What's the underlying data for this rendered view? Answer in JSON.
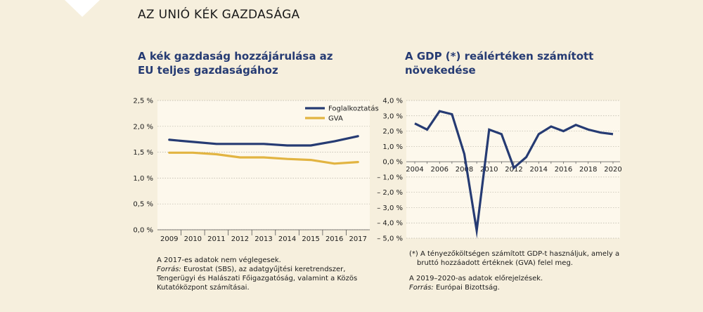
{
  "page": {
    "title": "AZ UNIÓ KÉK GAZDASÁGA"
  },
  "left": {
    "title_line1": "A kék gazdaság hozzájárulása az",
    "title_line2": "EU teljes gazdaságához",
    "notes": {
      "line1": "A 2017-es adatok nem véglegesek.",
      "source_label": "Forrás:",
      "source_text": " Eurostat (SBS), az adatgyűjtési keretrendszer,",
      "line3": "Tengerügyi és Halászati Főigazgatóság, valamint a Közös",
      "line4": "Kutatóközpont számításai."
    }
  },
  "right": {
    "title_line1": "A GDP (*) reálértéken számított",
    "title_line2": "növekedése",
    "notes": {
      "fn_line1": "(*) A tényezőköltségen számított GDP-t használjuk, amely a",
      "fn_line2": "bruttó hozzáadott értéknek (GVA) felel meg.",
      "line3": "A 2019–2020-as adatok előrejelzések.",
      "source_label": "Forrás:",
      "source_text": " Európai Bizottság."
    }
  },
  "colors": {
    "navy": "#263b73",
    "gold": "#e2b441",
    "grid": "#b8b3a6",
    "panel": "#fdf8ec"
  },
  "chart_data": [
    {
      "type": "line",
      "title": "A kék gazdaság hozzájárulása az EU teljes gazdaságához",
      "x": [
        "2009",
        "2010",
        "2011",
        "2012",
        "2013",
        "2014",
        "2015",
        "2016",
        "2017"
      ],
      "yticks": [
        "0,0 %",
        "0,5 %",
        "1,0 %",
        "1,5 %",
        "2,0 %",
        "2,5 %"
      ],
      "ylim": [
        0,
        2.5
      ],
      "legend_position": "top-right",
      "series": [
        {
          "name": "Foglalkoztatás",
          "color": "#263b73",
          "values": [
            1.74,
            1.7,
            1.66,
            1.66,
            1.66,
            1.63,
            1.63,
            1.71,
            1.81
          ]
        },
        {
          "name": "GVA",
          "color": "#e2b441",
          "values": [
            1.49,
            1.49,
            1.46,
            1.4,
            1.4,
            1.37,
            1.35,
            1.28,
            1.31
          ]
        }
      ]
    },
    {
      "type": "line",
      "title": "A GDP (*) reálértéken számított növekedése",
      "x": [
        "2004",
        "2005",
        "2006",
        "2007",
        "2008",
        "2009",
        "2010",
        "2011",
        "2012",
        "2013",
        "2014",
        "2015",
        "2016",
        "2017",
        "2018",
        "2019",
        "2020"
      ],
      "xticks": [
        "2004",
        "2006",
        "2008",
        "2010",
        "2012",
        "2014",
        "2016",
        "2018",
        "2020"
      ],
      "yticks": [
        "4,0 %",
        "3,0 %",
        "2,0 %",
        "1,0 %",
        "0,0 %",
        "– 1,0 %",
        "– 2,0 %",
        "– 3,0 %",
        "– 4,0 %",
        "– 5,0 %"
      ],
      "ylim": [
        -5,
        4
      ],
      "series": [
        {
          "color": "#263b73",
          "values": [
            2.5,
            2.1,
            3.3,
            3.1,
            0.5,
            -4.5,
            2.1,
            1.8,
            -0.4,
            0.3,
            1.8,
            2.3,
            2.0,
            2.4,
            2.1,
            1.9,
            1.8
          ]
        }
      ]
    }
  ]
}
